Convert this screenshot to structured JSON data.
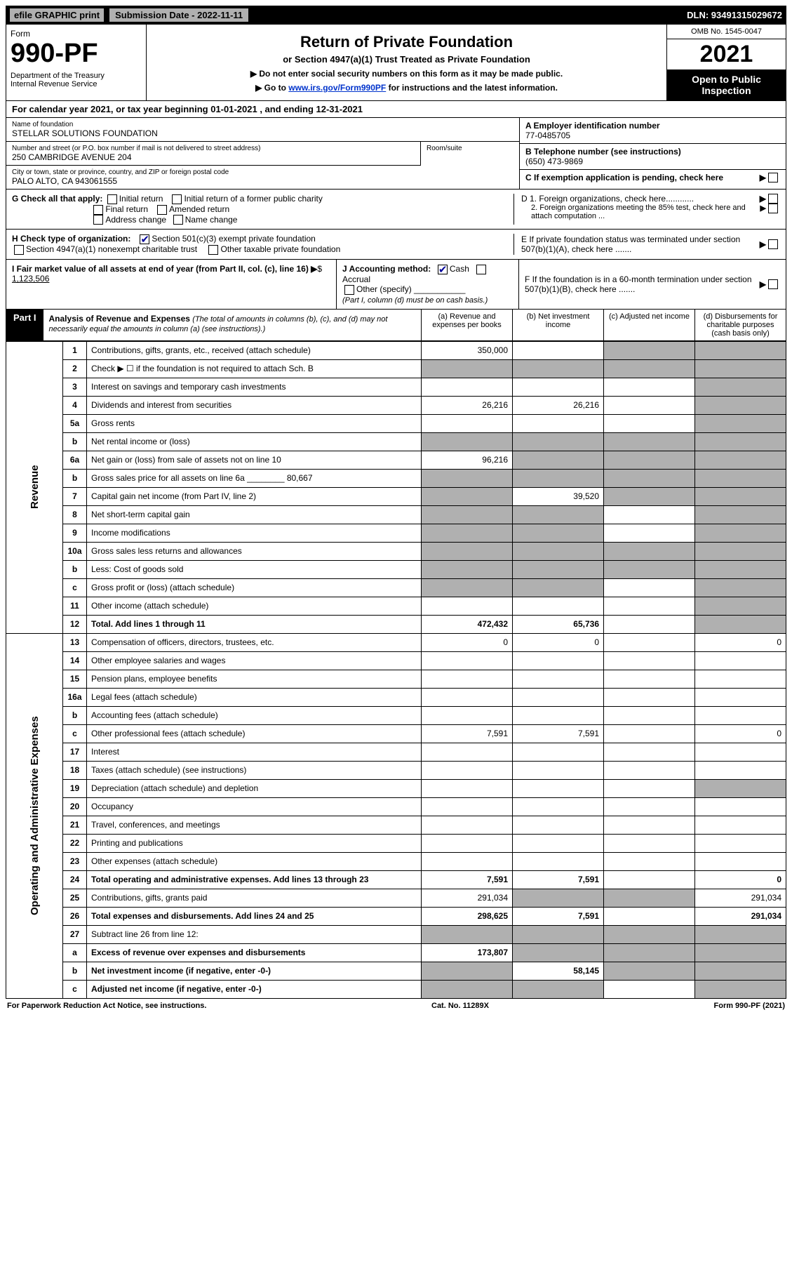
{
  "topbar": {
    "efile": "efile GRAPHIC print",
    "subdate_label": "Submission Date - 2022-11-11",
    "dln": "DLN: 93491315029672"
  },
  "header": {
    "form_word": "Form",
    "form_no": "990-PF",
    "dept": "Department of the Treasury\nInternal Revenue Service",
    "title": "Return of Private Foundation",
    "subtitle": "or Section 4947(a)(1) Trust Treated as Private Foundation",
    "instr1": "▶ Do not enter social security numbers on this form as it may be made public.",
    "instr2_pre": "▶ Go to ",
    "instr2_link": "www.irs.gov/Form990PF",
    "instr2_post": " for instructions and the latest information.",
    "omb": "OMB No. 1545-0047",
    "year": "2021",
    "open": "Open to Public Inspection"
  },
  "calyear": "For calendar year 2021, or tax year beginning 01-01-2021          , and ending 12-31-2021",
  "info": {
    "name_label": "Name of foundation",
    "name": "STELLAR SOLUTIONS FOUNDATION",
    "addr_label": "Number and street (or P.O. box number if mail is not delivered to street address)",
    "addr": "250 CAMBRIDGE AVENUE 204",
    "room_label": "Room/suite",
    "city_label": "City or town, state or province, country, and ZIP or foreign postal code",
    "city": "PALO ALTO, CA  943061555",
    "ein_label": "A Employer identification number",
    "ein": "77-0485705",
    "phone_label": "B Telephone number (see instructions)",
    "phone": "(650) 473-9869",
    "c_label": "C If exemption application is pending, check here"
  },
  "sectionG": {
    "label": "G Check all that apply:",
    "opts": [
      "Initial return",
      "Initial return of a former public charity",
      "Final return",
      "Amended return",
      "Address change",
      "Name change"
    ],
    "d1": "D 1. Foreign organizations, check here............",
    "d2": "2. Foreign organizations meeting the 85% test, check here and attach computation ...",
    "e": "E  If private foundation status was terminated under section 507(b)(1)(A), check here ......."
  },
  "sectionH": {
    "label": "H Check type of organization:",
    "opt1": "Section 501(c)(3) exempt private foundation",
    "opt2": "Section 4947(a)(1) nonexempt charitable trust",
    "opt3": "Other taxable private foundation"
  },
  "sectionI": {
    "label": "I Fair market value of all assets at end of year (from Part II, col. (c), line 16)",
    "value": "1,123,506"
  },
  "sectionJ": {
    "label": "J Accounting method:",
    "cash": "Cash",
    "accrual": "Accrual",
    "other": "Other (specify)",
    "note": "(Part I, column (d) must be on cash basis.)"
  },
  "sectionF": "F  If the foundation is in a 60-month termination under section 507(b)(1)(B), check here .......",
  "part1": {
    "label": "Part I",
    "title": "Analysis of Revenue and Expenses",
    "note": "(The total of amounts in columns (b), (c), and (d) may not necessarily equal the amounts in column (a) (see instructions).)",
    "cols": [
      "(a)  Revenue and expenses per books",
      "(b)  Net investment income",
      "(c)  Adjusted net income",
      "(d)  Disbursements for charitable purposes (cash basis only)"
    ]
  },
  "side_labels": {
    "revenue": "Revenue",
    "expenses": "Operating and Administrative Expenses"
  },
  "rows": [
    {
      "n": "1",
      "d": "Contributions, gifts, grants, etc., received (attach schedule)",
      "a": "350,000",
      "b": "",
      "c": "shaded",
      "dd": "shaded"
    },
    {
      "n": "2",
      "d": "Check ▶ ☐ if the foundation is not required to attach Sch. B",
      "a": "shaded",
      "b": "shaded",
      "c": "shaded",
      "dd": "shaded"
    },
    {
      "n": "3",
      "d": "Interest on savings and temporary cash investments",
      "a": "",
      "b": "",
      "c": "",
      "dd": "shaded"
    },
    {
      "n": "4",
      "d": "Dividends and interest from securities",
      "a": "26,216",
      "b": "26,216",
      "c": "",
      "dd": "shaded"
    },
    {
      "n": "5a",
      "d": "Gross rents",
      "a": "",
      "b": "",
      "c": "",
      "dd": "shaded"
    },
    {
      "n": "b",
      "d": "Net rental income or (loss)",
      "a": "shaded",
      "b": "shaded",
      "c": "shaded",
      "dd": "shaded"
    },
    {
      "n": "6a",
      "d": "Net gain or (loss) from sale of assets not on line 10",
      "a": "96,216",
      "b": "shaded",
      "c": "shaded",
      "dd": "shaded"
    },
    {
      "n": "b",
      "d": "Gross sales price for all assets on line 6a ________ 80,667",
      "a": "shaded",
      "b": "shaded",
      "c": "shaded",
      "dd": "shaded"
    },
    {
      "n": "7",
      "d": "Capital gain net income (from Part IV, line 2)",
      "a": "shaded",
      "b": "39,520",
      "c": "shaded",
      "dd": "shaded"
    },
    {
      "n": "8",
      "d": "Net short-term capital gain",
      "a": "shaded",
      "b": "shaded",
      "c": "",
      "dd": "shaded"
    },
    {
      "n": "9",
      "d": "Income modifications",
      "a": "shaded",
      "b": "shaded",
      "c": "",
      "dd": "shaded"
    },
    {
      "n": "10a",
      "d": "Gross sales less returns and allowances",
      "a": "shaded",
      "b": "shaded",
      "c": "shaded",
      "dd": "shaded"
    },
    {
      "n": "b",
      "d": "Less: Cost of goods sold",
      "a": "shaded",
      "b": "shaded",
      "c": "shaded",
      "dd": "shaded"
    },
    {
      "n": "c",
      "d": "Gross profit or (loss) (attach schedule)",
      "a": "shaded",
      "b": "shaded",
      "c": "",
      "dd": "shaded"
    },
    {
      "n": "11",
      "d": "Other income (attach schedule)",
      "a": "",
      "b": "",
      "c": "",
      "dd": "shaded"
    },
    {
      "n": "12",
      "d": "Total. Add lines 1 through 11",
      "a": "472,432",
      "b": "65,736",
      "c": "",
      "dd": "shaded",
      "bold": true
    }
  ],
  "exp_rows": [
    {
      "n": "13",
      "d": "Compensation of officers, directors, trustees, etc.",
      "a": "0",
      "b": "0",
      "c": "",
      "dd": "0"
    },
    {
      "n": "14",
      "d": "Other employee salaries and wages",
      "a": "",
      "b": "",
      "c": "",
      "dd": ""
    },
    {
      "n": "15",
      "d": "Pension plans, employee benefits",
      "a": "",
      "b": "",
      "c": "",
      "dd": ""
    },
    {
      "n": "16a",
      "d": "Legal fees (attach schedule)",
      "a": "",
      "b": "",
      "c": "",
      "dd": ""
    },
    {
      "n": "b",
      "d": "Accounting fees (attach schedule)",
      "a": "",
      "b": "",
      "c": "",
      "dd": ""
    },
    {
      "n": "c",
      "d": "Other professional fees (attach schedule)",
      "a": "7,591",
      "b": "7,591",
      "c": "",
      "dd": "0"
    },
    {
      "n": "17",
      "d": "Interest",
      "a": "",
      "b": "",
      "c": "",
      "dd": ""
    },
    {
      "n": "18",
      "d": "Taxes (attach schedule) (see instructions)",
      "a": "",
      "b": "",
      "c": "",
      "dd": ""
    },
    {
      "n": "19",
      "d": "Depreciation (attach schedule) and depletion",
      "a": "",
      "b": "",
      "c": "",
      "dd": "shaded"
    },
    {
      "n": "20",
      "d": "Occupancy",
      "a": "",
      "b": "",
      "c": "",
      "dd": ""
    },
    {
      "n": "21",
      "d": "Travel, conferences, and meetings",
      "a": "",
      "b": "",
      "c": "",
      "dd": ""
    },
    {
      "n": "22",
      "d": "Printing and publications",
      "a": "",
      "b": "",
      "c": "",
      "dd": ""
    },
    {
      "n": "23",
      "d": "Other expenses (attach schedule)",
      "a": "",
      "b": "",
      "c": "",
      "dd": ""
    },
    {
      "n": "24",
      "d": "Total operating and administrative expenses. Add lines 13 through 23",
      "a": "7,591",
      "b": "7,591",
      "c": "",
      "dd": "0",
      "bold": true
    },
    {
      "n": "25",
      "d": "Contributions, gifts, grants paid",
      "a": "291,034",
      "b": "shaded",
      "c": "shaded",
      "dd": "291,034"
    },
    {
      "n": "26",
      "d": "Total expenses and disbursements. Add lines 24 and 25",
      "a": "298,625",
      "b": "7,591",
      "c": "",
      "dd": "291,034",
      "bold": true
    },
    {
      "n": "27",
      "d": "Subtract line 26 from line 12:",
      "a": "shaded",
      "b": "shaded",
      "c": "shaded",
      "dd": "shaded"
    },
    {
      "n": "a",
      "d": "Excess of revenue over expenses and disbursements",
      "a": "173,807",
      "b": "shaded",
      "c": "shaded",
      "dd": "shaded",
      "bold": true
    },
    {
      "n": "b",
      "d": "Net investment income (if negative, enter -0-)",
      "a": "shaded",
      "b": "58,145",
      "c": "shaded",
      "dd": "shaded",
      "bold": true
    },
    {
      "n": "c",
      "d": "Adjusted net income (if negative, enter -0-)",
      "a": "shaded",
      "b": "shaded",
      "c": "",
      "dd": "shaded",
      "bold": true
    }
  ],
  "footer": {
    "left": "For Paperwork Reduction Act Notice, see instructions.",
    "mid": "Cat. No. 11289X",
    "right": "Form 990-PF (2021)"
  },
  "colors": {
    "black": "#000000",
    "grey": "#b0b0b0",
    "link": "#0033cc"
  }
}
